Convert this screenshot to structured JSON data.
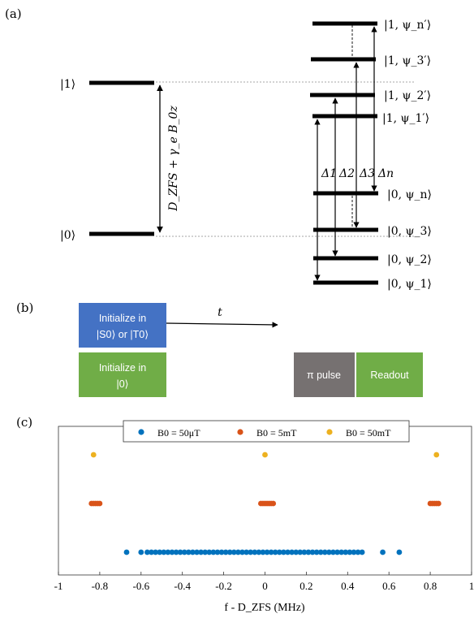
{
  "panel_labels": {
    "a": "(a)",
    "b": "(b)",
    "c": "(c)"
  },
  "panel_a": {
    "left_levels": {
      "upper": "|1⟩",
      "lower": "|0⟩"
    },
    "splitting_label": "D_ZFS + γ_e B_0z",
    "right_upper_levels": [
      "|1, ψ_n′⟩",
      "|1, ψ_3′⟩",
      "|1, ψ_2′⟩",
      "|1, ψ_1′⟩"
    ],
    "right_lower_levels": [
      "|0, ψ_n⟩",
      "|0, ψ_3⟩",
      "|0, ψ_2⟩",
      "|0, ψ_1⟩"
    ],
    "transitions": [
      "Δ1",
      "Δ2",
      "Δ3",
      "Δn"
    ]
  },
  "panel_b": {
    "init_singlet": {
      "line1": "Initialize in",
      "line2": "|S0⟩ or |T0⟩"
    },
    "init_zero": {
      "line1": "Initialize in",
      "line2": "|0⟩"
    },
    "time_label": "t",
    "pi_pulse": "π pulse",
    "readout": "Readout",
    "colors": {
      "init_singlet": "#4472c4",
      "init_zero": "#70ad47",
      "pi_pulse": "#767171",
      "readout": "#70ad47"
    }
  },
  "chart_data": {
    "type": "scatter",
    "xlabel": "f - D_ZFS (MHz)",
    "xlim": [
      -1,
      1
    ],
    "x_ticks": [
      "-1",
      "-0.8",
      "-0.6",
      "-0.4",
      "-0.2",
      "0",
      "0.2",
      "0.4",
      "0.6",
      "0.8",
      "1"
    ],
    "legend_position": "top-center",
    "series": [
      {
        "name": "B0 = 50μT",
        "color": "#0072bd",
        "row": 1,
        "x": [
          -0.67,
          -0.6,
          -0.57,
          -0.55,
          -0.53,
          -0.51,
          -0.49,
          -0.47,
          -0.45,
          -0.43,
          -0.41,
          -0.39,
          -0.37,
          -0.35,
          -0.33,
          -0.31,
          -0.29,
          -0.27,
          -0.25,
          -0.23,
          -0.21,
          -0.19,
          -0.17,
          -0.15,
          -0.13,
          -0.11,
          -0.09,
          -0.07,
          -0.05,
          -0.03,
          -0.01,
          0.01,
          0.03,
          0.05,
          0.07,
          0.09,
          0.11,
          0.13,
          0.15,
          0.17,
          0.19,
          0.21,
          0.23,
          0.25,
          0.27,
          0.29,
          0.31,
          0.33,
          0.35,
          0.37,
          0.39,
          0.41,
          0.43,
          0.45,
          0.47,
          0.57,
          0.65
        ]
      },
      {
        "name": "B0 = 5mT",
        "color": "#d95319",
        "row": 2,
        "x": [
          -0.84,
          -0.83,
          -0.82,
          -0.81,
          -0.8,
          -0.02,
          -0.01,
          0.0,
          0.01,
          0.02,
          0.03,
          0.04,
          0.8,
          0.81,
          0.82,
          0.83,
          0.84
        ]
      },
      {
        "name": "B0 = 50mT",
        "color": "#edb120",
        "row": 3,
        "x": [
          -0.83,
          0.0,
          0.83
        ]
      }
    ]
  }
}
